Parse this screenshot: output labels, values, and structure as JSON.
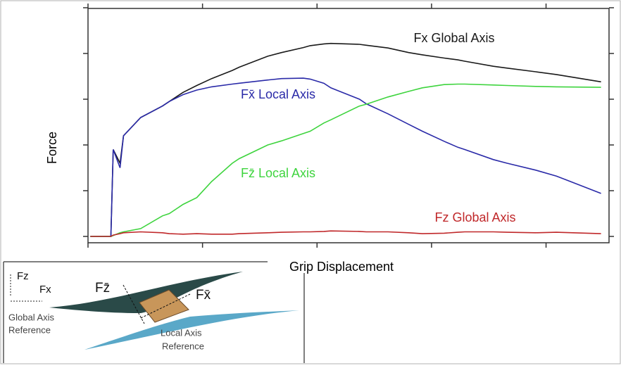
{
  "chart_data": {
    "type": "line",
    "xlabel": "Grip Displacement",
    "ylabel": "Force",
    "xlim": [
      0,
      4.55
    ],
    "ylim": [
      0,
      5
    ],
    "xticks": [
      0,
      1,
      2,
      3,
      4
    ],
    "yticks": [
      0,
      1,
      2,
      3,
      4,
      5
    ],
    "x": [
      0.02,
      0.2,
      0.22,
      0.28,
      0.31,
      0.46,
      0.65,
      0.71,
      0.83,
      0.95,
      1.08,
      1.26,
      1.32,
      1.57,
      1.69,
      1.88,
      1.94,
      2.06,
      2.12,
      2.37,
      2.43,
      2.62,
      2.8,
      2.92,
      3.11,
      3.23,
      3.29,
      3.54,
      3.66,
      3.91,
      4.09,
      4.48
    ],
    "series": [
      {
        "name": "Fx Global Axis",
        "color": "#1a1a1a",
        "values": [
          0,
          0,
          1.9,
          1.6,
          2.2,
          2.6,
          2.85,
          2.95,
          3.15,
          3.3,
          3.45,
          3.63,
          3.7,
          3.94,
          4.02,
          4.13,
          4.17,
          4.21,
          4.22,
          4.2,
          4.18,
          4.12,
          4.02,
          3.97,
          3.9,
          3.86,
          3.83,
          3.72,
          3.68,
          3.6,
          3.54,
          3.38
        ]
      },
      {
        "name": "Fx̄ Local Axis",
        "color": "#2a2aa8",
        "values": [
          0,
          0,
          1.9,
          1.5,
          2.2,
          2.6,
          2.85,
          2.95,
          3.1,
          3.2,
          3.27,
          3.33,
          3.35,
          3.42,
          3.45,
          3.46,
          3.44,
          3.35,
          3.25,
          3.0,
          2.9,
          2.68,
          2.45,
          2.3,
          2.08,
          1.95,
          1.9,
          1.68,
          1.6,
          1.45,
          1.32,
          0.94
        ]
      },
      {
        "name": "Fz̄ Local Axis",
        "color": "#3ed43e",
        "values": [
          0,
          0,
          0.02,
          0.08,
          0.1,
          0.17,
          0.45,
          0.5,
          0.7,
          0.85,
          1.2,
          1.6,
          1.7,
          2.0,
          2.09,
          2.25,
          2.3,
          2.48,
          2.55,
          2.85,
          2.89,
          3.05,
          3.17,
          3.25,
          3.32,
          3.33,
          3.33,
          3.31,
          3.3,
          3.28,
          3.27,
          3.26
        ]
      },
      {
        "name": "Fz Global Axis",
        "color": "#c0282a",
        "values": [
          0,
          0,
          0.03,
          0.06,
          0.08,
          0.1,
          0.08,
          0.06,
          0.05,
          0.06,
          0.05,
          0.05,
          0.06,
          0.08,
          0.09,
          0.1,
          0.1,
          0.11,
          0.12,
          0.11,
          0.1,
          0.1,
          0.08,
          0.06,
          0.07,
          0.09,
          0.1,
          0.1,
          0.09,
          0.08,
          0.09,
          0.06
        ]
      }
    ],
    "inset": {
      "labels": [
        "Fz",
        "Fx",
        "Global Axis",
        "Reference",
        "Fz̄",
        "Fx̄",
        "Local Axis",
        "Reference"
      ]
    }
  }
}
